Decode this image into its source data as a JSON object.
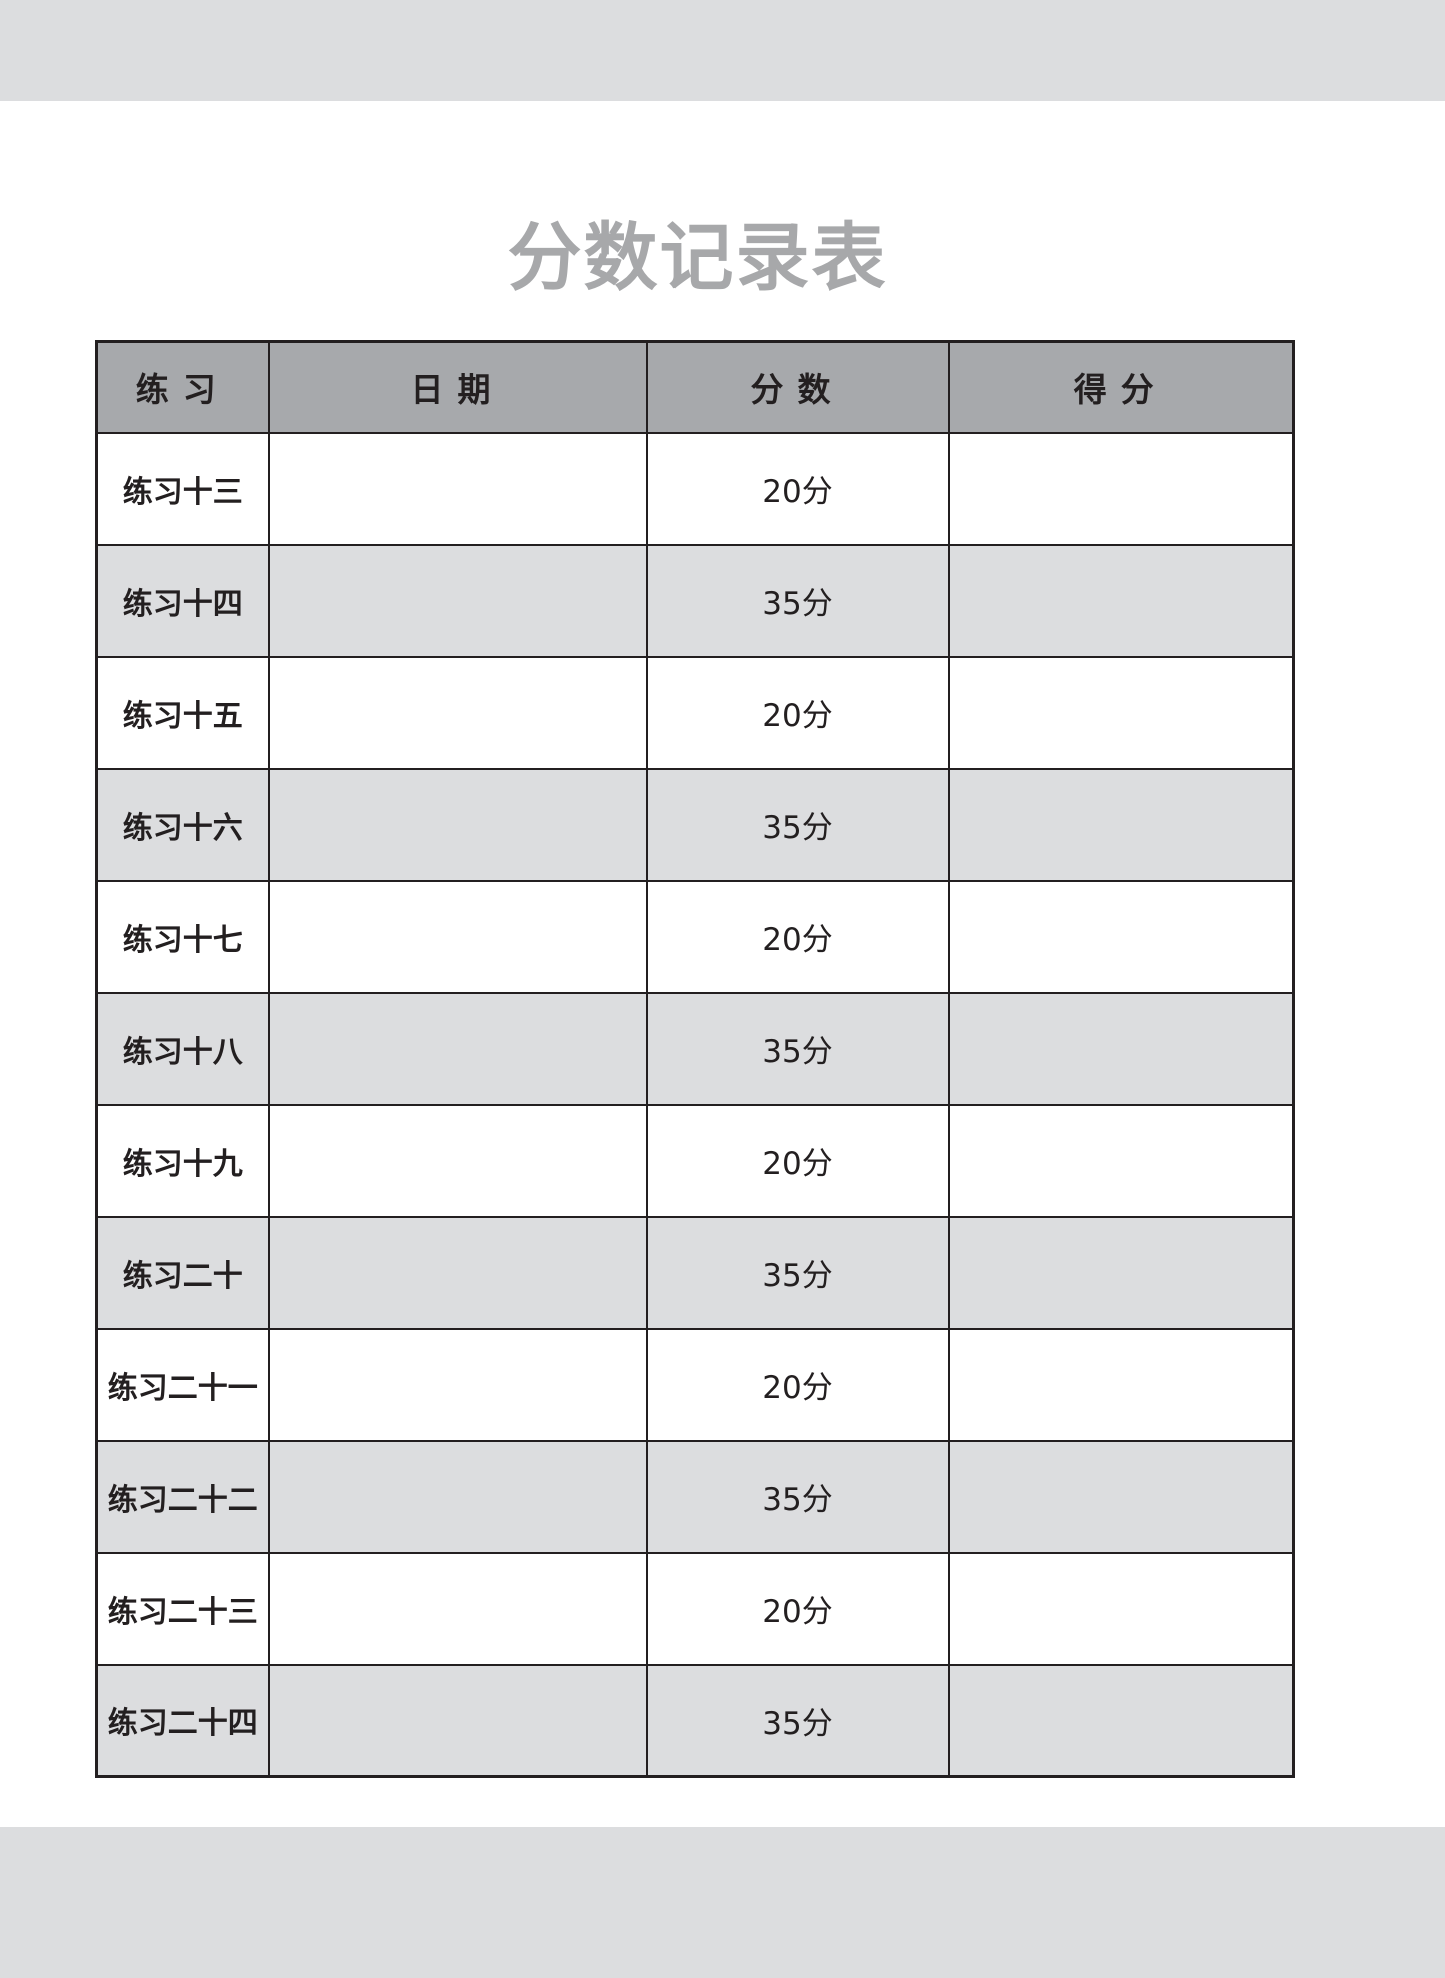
{
  "title": "分数记录表",
  "headers": [
    "练习",
    "日期",
    "分数",
    "得分"
  ],
  "rows": [
    {
      "name": "练习十三",
      "date": "",
      "points": "20分",
      "score": ""
    },
    {
      "name": "练习十四",
      "date": "",
      "points": "35分",
      "score": ""
    },
    {
      "name": "练习十五",
      "date": "",
      "points": "20分",
      "score": ""
    },
    {
      "name": "练习十六",
      "date": "",
      "points": "35分",
      "score": ""
    },
    {
      "name": "练习十七",
      "date": "",
      "points": "20分",
      "score": ""
    },
    {
      "name": "练习十八",
      "date": "",
      "points": "35分",
      "score": ""
    },
    {
      "name": "练习十九",
      "date": "",
      "points": "20分",
      "score": ""
    },
    {
      "name": "练习二十",
      "date": "",
      "points": "35分",
      "score": ""
    },
    {
      "name": "练习二十一",
      "date": "",
      "points": "20分",
      "score": ""
    },
    {
      "name": "练习二十二",
      "date": "",
      "points": "35分",
      "score": ""
    },
    {
      "name": "练习二十三",
      "date": "",
      "points": "20分",
      "score": ""
    },
    {
      "name": "练习二十四",
      "date": "",
      "points": "35分",
      "score": ""
    }
  ]
}
